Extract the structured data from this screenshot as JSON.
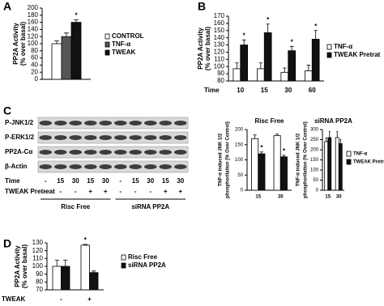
{
  "chart_data": [
    {
      "type": "bar",
      "panel": "A",
      "ylabel": [
        "PP2A Activity",
        "(% over basal)"
      ],
      "categories": [
        null
      ],
      "ylim": [
        0,
        200
      ],
      "yticks": [
        0,
        20,
        40,
        60,
        80,
        100,
        120,
        140,
        160,
        180,
        200
      ],
      "legend": true,
      "series": [
        {
          "name": "CONTROL",
          "color": "#ffffff",
          "values": [
            100
          ],
          "errors": [
            8
          ],
          "markers": [
            null
          ]
        },
        {
          "name": "TNF-α",
          "color": "#555555",
          "values": [
            120
          ],
          "errors": [
            10
          ],
          "markers": [
            null
          ]
        },
        {
          "name": "TWEAK",
          "color": "#111111",
          "values": [
            160
          ],
          "errors": [
            7
          ],
          "markers": [
            "*"
          ]
        }
      ]
    },
    {
      "type": "bar",
      "panel": "B",
      "ylabel": [
        "PP2A Activity",
        "(% over basal)"
      ],
      "xlabel": "Time",
      "categories": [
        "10",
        "15",
        "30",
        "60"
      ],
      "ylim": [
        80,
        170
      ],
      "yticks": [
        80,
        90,
        100,
        110,
        120,
        130,
        140,
        150,
        160,
        170
      ],
      "legend": true,
      "series": [
        {
          "name": "TNF-α",
          "color": "#ffffff",
          "values": [
            97,
            97,
            92,
            94
          ],
          "errors": [
            8,
            8,
            6,
            8
          ],
          "markers": [
            null,
            null,
            null,
            null
          ]
        },
        {
          "name": "TWEAK Pretrat",
          "color": "#111111",
          "values": [
            130,
            147,
            122,
            138
          ],
          "errors": [
            7,
            12,
            6,
            12
          ],
          "markers": [
            "*",
            "*",
            "*",
            "*"
          ]
        }
      ]
    },
    {
      "type": "bar",
      "title": "Risc Free",
      "ylabel": [
        "TNF-α induced JNK 1/2",
        "phosphorilation (% Over Control)"
      ],
      "categories": [
        "15",
        "30"
      ],
      "ylim": [
        0,
        200
      ],
      "yticks": [
        0,
        50,
        100,
        150,
        200
      ],
      "legend": false,
      "series": [
        {
          "color": "#ffffff",
          "values": [
            170,
            180
          ],
          "errors": [
            12,
            5
          ],
          "markers": [
            null,
            null
          ]
        },
        {
          "color": "#111111",
          "values": [
            120,
            110
          ],
          "errors": [
            6,
            5
          ],
          "markers": [
            "*",
            "*"
          ]
        }
      ]
    },
    {
      "type": "bar",
      "title": "siRNA PP2A",
      "ylabel": [
        "TNF-α induced JNK 1/2",
        "phosphorilation (% Over Control)"
      ],
      "categories": [
        "15",
        "30"
      ],
      "ylim": [
        0,
        300
      ],
      "yticks": [
        0,
        50,
        100,
        150,
        200,
        250,
        300
      ],
      "legend": true,
      "series": [
        {
          "name": "TNF-α",
          "color": "#ffffff",
          "values": [
            240,
            260
          ],
          "errors": [
            20,
            30
          ],
          "markers": [
            null,
            null
          ]
        },
        {
          "name": "TWEAK Pretreat",
          "color": "#111111",
          "values": [
            260,
            230
          ],
          "errors": [
            30,
            20
          ],
          "markers": [
            null,
            null
          ]
        }
      ]
    },
    {
      "type": "bar",
      "panel": "D",
      "ylabel": [
        "PP2A Activity",
        "(% over basal)"
      ],
      "xlabel": "TWEAK",
      "categories": [
        "-",
        "+"
      ],
      "ylim": [
        70,
        130
      ],
      "yticks": [
        70,
        80,
        90,
        100,
        110,
        120,
        130
      ],
      "legend": true,
      "series": [
        {
          "name": "Risc Free",
          "color": "#ffffff",
          "values": [
            100,
            127
          ],
          "errors": [
            8,
            1
          ],
          "markers": [
            null,
            "*"
          ]
        },
        {
          "name": "siRNA PP2A",
          "color": "#111111",
          "values": [
            100,
            92
          ],
          "errors": [
            8,
            2
          ],
          "markers": [
            null,
            null
          ]
        }
      ]
    }
  ],
  "blot": {
    "panel": "C",
    "rows": [
      "P-JNK1/2",
      "P-ERK1/2",
      "PP2A-Cα",
      "β-Actin"
    ],
    "time_label": "Time",
    "time": [
      "-",
      "15",
      "30",
      "15",
      "30",
      "-",
      "15",
      "30",
      "15",
      "30"
    ],
    "pretreat_label": "TWEAK Pretreat",
    "pretreat": [
      "-",
      "-",
      "-",
      "+",
      "+",
      "-",
      "-",
      "-",
      "+",
      "+"
    ],
    "groups": [
      "Risc Free",
      "siRNA PP2A"
    ]
  }
}
